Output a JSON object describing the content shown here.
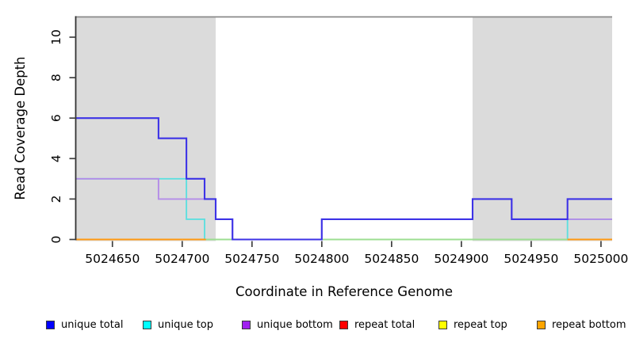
{
  "chart_data": {
    "type": "line",
    "subtype": "step-coverage",
    "title": "",
    "xlabel": "Coordinate in Reference Genome",
    "ylabel": "Read Coverage Depth",
    "xlim": [
      5024624,
      5025008
    ],
    "ylim": [
      0,
      11
    ],
    "x_ticks": [
      5024650,
      5024700,
      5024750,
      5024800,
      5024850,
      5024900,
      5024950,
      5025000
    ],
    "y_ticks": [
      0,
      2,
      4,
      6,
      8,
      10
    ],
    "grid": "off",
    "legend_position": "bottom",
    "shaded_regions": [
      {
        "x0": 5024624,
        "x1": 5024724,
        "color": "#DBDBDB"
      },
      {
        "x0": 5024908,
        "x1": 5025008,
        "color": "#DBDBDB"
      }
    ],
    "top_boundary_line": {
      "y": 11,
      "color": "#8A8A8A"
    },
    "series": [
      {
        "name": "unique total",
        "legend_color": "#0000FF",
        "line_color": "#3D33E6",
        "x_end": 5025008,
        "steps": [
          [
            5024624,
            6
          ],
          [
            5024683,
            5
          ],
          [
            5024703,
            3
          ],
          [
            5024716,
            2
          ],
          [
            5024724,
            1
          ],
          [
            5024736,
            0
          ],
          [
            5024800,
            1
          ],
          [
            5024908,
            2
          ],
          [
            5024936,
            1
          ],
          [
            5024976,
            2
          ]
        ]
      },
      {
        "name": "unique top",
        "legend_color": "#00FFFF",
        "line_color": "#5FDFDF",
        "x_end": 5025008,
        "steps": [
          [
            5024624,
            3
          ],
          [
            5024703,
            1
          ],
          [
            5024716,
            0
          ],
          [
            5024976,
            1
          ]
        ]
      },
      {
        "name": "unique bottom",
        "legend_color": "#A020F0",
        "line_color": "#B48CE8",
        "x_end": 5025008,
        "steps": [
          [
            5024624,
            3
          ],
          [
            5024683,
            2
          ],
          [
            5024724,
            1
          ],
          [
            5024736,
            0
          ],
          [
            5024800,
            1
          ],
          [
            5024908,
            2
          ],
          [
            5024936,
            1
          ]
        ]
      },
      {
        "name": "repeat total",
        "legend_color": "#FF0000",
        "line_color": "#E60000",
        "x_end": 5025008,
        "steps": [
          [
            5024624,
            0
          ]
        ]
      },
      {
        "name": "repeat top",
        "legend_color": "#FFFF00",
        "line_color": "#F5F500",
        "x_end": 5025008,
        "steps": [
          [
            5024624,
            0
          ]
        ]
      },
      {
        "name": "repeat bottom",
        "legend_color": "#FFA500",
        "line_color": "#FF9912",
        "segments": [
          {
            "x0": 5024624,
            "x1": 5024717,
            "value": 0
          },
          {
            "x0": 5024976,
            "x1": 5025008,
            "value": 0
          }
        ]
      }
    ],
    "overlap_blend_segments": [
      {
        "x0": 5024717,
        "x1": 5024976,
        "value": 0,
        "color": "#9CDE91",
        "note": "pale green where repeat top overlaps unique top at depth 0"
      }
    ]
  },
  "legend": {
    "items": [
      {
        "label": "unique total",
        "color": "#0000FF"
      },
      {
        "label": "unique top",
        "color": "#00FFFF"
      },
      {
        "label": "unique bottom",
        "color": "#A020F0"
      },
      {
        "label": "repeat total",
        "color": "#FF0000"
      },
      {
        "label": "repeat top",
        "color": "#FFFF00"
      },
      {
        "label": "repeat bottom",
        "color": "#FFA500"
      }
    ]
  }
}
